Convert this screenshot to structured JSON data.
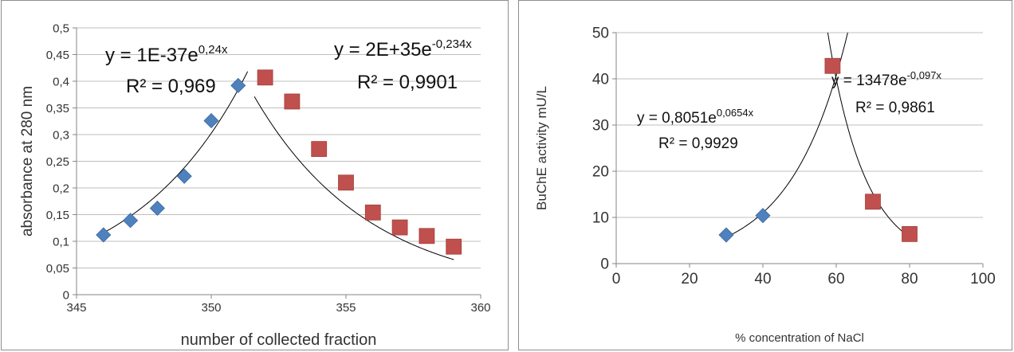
{
  "chart_data": [
    {
      "type": "scatter",
      "title": "",
      "xlabel": "number of collected fraction",
      "ylabel": "absorbance at 280 nm",
      "xlim": [
        345,
        360
      ],
      "ylim": [
        0,
        0.5
      ],
      "xticks": [
        "345",
        "350",
        "355",
        "360"
      ],
      "yticks": [
        "0",
        "0,05",
        "0,1",
        "0,15",
        "0,2",
        "0,25",
        "0,3",
        "0,35",
        "0,4",
        "0,45",
        "0,5"
      ],
      "grid": "horizontal",
      "legend": "none",
      "series": [
        {
          "marker": "diamond",
          "color": "#4f81bd",
          "x": [
            346,
            347,
            348,
            349,
            350,
            351
          ],
          "y": [
            0.112,
            0.139,
            0.162,
            0.222,
            0.326,
            0.392
          ],
          "trendline": {
            "type": "exponential",
            "a": 1e-37,
            "b": 0.24,
            "x_range": [
              346,
              351.35
            ]
          }
        },
        {
          "marker": "square",
          "color": "#c0504d",
          "x": [
            352,
            353,
            354,
            355,
            356,
            357,
            358,
            359
          ],
          "y": [
            0.407,
            0.362,
            0.273,
            0.21,
            0.154,
            0.126,
            0.11,
            0.09
          ],
          "trendline": {
            "type": "exponential",
            "a": 2e+35,
            "b": -0.234,
            "x_range": [
              351.6,
              359
            ]
          }
        }
      ],
      "annotations": [
        {
          "text_main": "y = 1E-37e",
          "text_exp": "0,24x",
          "r2": "R² = 0,969"
        },
        {
          "text_main": "y = 2E+35e",
          "text_exp": "-0,234x",
          "r2": "R² = 0,9901"
        }
      ]
    },
    {
      "type": "scatter",
      "title": "",
      "xlabel": "% concentration of NaCl",
      "ylabel": "BuChE activity mU/L",
      "xlim": [
        0,
        100
      ],
      "ylim": [
        0,
        50
      ],
      "xticks": [
        "0",
        "20",
        "40",
        "60",
        "80",
        "100"
      ],
      "yticks": [
        "0",
        "10",
        "20",
        "30",
        "40",
        "50"
      ],
      "grid": "horizontal",
      "legend": "none",
      "series": [
        {
          "marker": "diamond",
          "color": "#4f81bd",
          "x": [
            30,
            40
          ],
          "y": [
            6.2,
            10.4
          ],
          "trendline": {
            "type": "exponential",
            "a": 0.8051,
            "b": 0.0654,
            "x_range": [
              30,
              63.5
            ]
          }
        },
        {
          "marker": "square",
          "color": "#c0504d",
          "x": [
            59,
            70,
            80
          ],
          "y": [
            42.8,
            13.4,
            6.4
          ],
          "trendline": {
            "type": "exponential",
            "a": 13478,
            "b": -0.097,
            "x_range": [
              57,
              80
            ]
          }
        }
      ],
      "annotations": [
        {
          "text_main": "y = 0,8051e",
          "text_exp": "0,0654x",
          "r2": "R² = 0,9929"
        },
        {
          "text_main": "y = 13478e",
          "text_exp": "-0,097x",
          "r2": "R² = 0,9861"
        }
      ]
    }
  ]
}
